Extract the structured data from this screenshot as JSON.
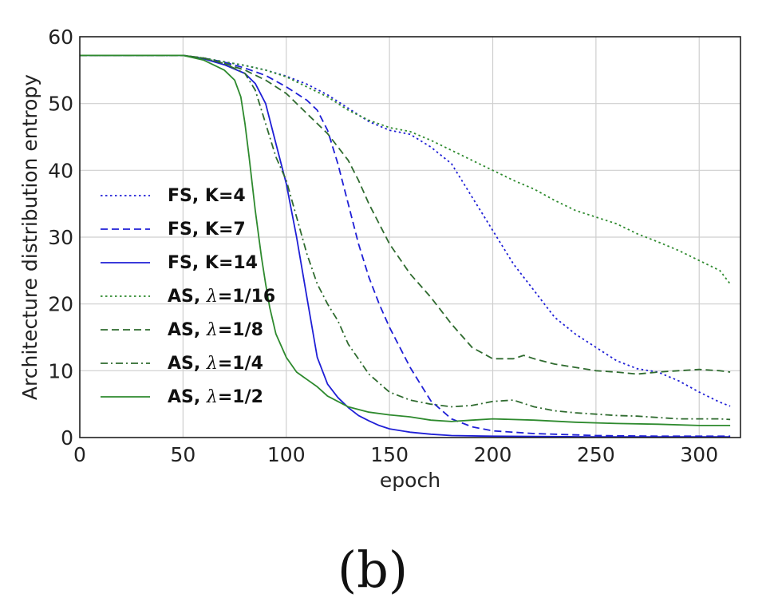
{
  "caption": "(b)",
  "chart_data": {
    "type": "line",
    "xlabel": "epoch",
    "ylabel": "Architecture distribution entropy",
    "xlim": [
      0,
      320
    ],
    "ylim": [
      0,
      60
    ],
    "xticks": [
      0,
      50,
      100,
      150,
      200,
      250,
      300
    ],
    "yticks": [
      0,
      10,
      20,
      30,
      40,
      50,
      60
    ],
    "grid": true,
    "legend_position": "left",
    "colors": {
      "blue": "#1f1fd6",
      "green": "#2e8a2e",
      "darkgreen": "#2f6b2f",
      "grid": "#cfcfcf",
      "axis": "#222222"
    },
    "series": [
      {
        "name_parts": [
          "FS, K=4"
        ],
        "color": "#1f1fd6",
        "style": "dotted",
        "x": [
          0,
          50,
          60,
          80,
          90,
          100,
          110,
          120,
          130,
          140,
          150,
          160,
          170,
          180,
          190,
          200,
          210,
          220,
          230,
          240,
          250,
          260,
          270,
          280,
          290,
          300,
          310,
          315
        ],
        "y": [
          57.2,
          57.2,
          56.8,
          55.7,
          55.0,
          54.1,
          52.9,
          51.3,
          49.3,
          47.3,
          46.0,
          45.4,
          43.5,
          41.0,
          36.0,
          31.0,
          26.0,
          22.0,
          18.0,
          15.5,
          13.5,
          11.5,
          10.3,
          9.8,
          8.5,
          6.8,
          5.3,
          4.7
        ]
      },
      {
        "name_parts": [
          "FS, K=7"
        ],
        "color": "#1f1fd6",
        "style": "dashed",
        "x": [
          0,
          50,
          60,
          70,
          80,
          90,
          100,
          110,
          115,
          120,
          125,
          130,
          135,
          140,
          145,
          150,
          155,
          160,
          165,
          170,
          180,
          190,
          200,
          220,
          250,
          280,
          315
        ],
        "y": [
          57.2,
          57.2,
          56.8,
          56.2,
          55.3,
          54.2,
          52.5,
          50.5,
          49.0,
          46.0,
          41.0,
          35.0,
          29.0,
          24.0,
          20.0,
          16.5,
          13.5,
          10.5,
          8.0,
          5.5,
          2.8,
          1.6,
          1.0,
          0.6,
          0.3,
          0.2,
          0.2
        ]
      },
      {
        "name_parts": [
          "FS, K=14"
        ],
        "color": "#1f1fd6",
        "style": "solid",
        "x": [
          0,
          50,
          60,
          70,
          80,
          85,
          90,
          95,
          100,
          105,
          110,
          115,
          120,
          125,
          130,
          135,
          140,
          145,
          150,
          160,
          170,
          180,
          200,
          250,
          315
        ],
        "y": [
          57.2,
          57.2,
          56.7,
          55.8,
          54.5,
          53.0,
          50.0,
          44.0,
          38.0,
          30.0,
          21.0,
          12.0,
          8.0,
          6.0,
          4.5,
          3.3,
          2.5,
          1.8,
          1.3,
          0.8,
          0.5,
          0.3,
          0.2,
          0.1,
          0.1
        ]
      },
      {
        "name_parts": [
          "AS, ",
          "λ",
          "=1/16"
        ],
        "color": "#2e8a2e",
        "style": "dotted",
        "x": [
          0,
          50,
          60,
          80,
          90,
          100,
          110,
          120,
          130,
          140,
          150,
          160,
          170,
          180,
          190,
          200,
          210,
          220,
          230,
          240,
          250,
          260,
          270,
          280,
          290,
          300,
          310,
          315
        ],
        "y": [
          57.2,
          57.2,
          56.8,
          55.7,
          55.0,
          54.0,
          52.5,
          51.0,
          49.0,
          47.5,
          46.4,
          45.8,
          44.5,
          43.0,
          41.5,
          40.0,
          38.5,
          37.2,
          35.5,
          34.0,
          33.0,
          32.0,
          30.5,
          29.3,
          28.0,
          26.5,
          25.0,
          23.0
        ]
      },
      {
        "name_parts": [
          "AS, ",
          "λ",
          "=1/8"
        ],
        "color": "#2f6b2f",
        "style": "dashed",
        "x": [
          0,
          50,
          60,
          70,
          80,
          90,
          100,
          110,
          120,
          130,
          135,
          140,
          145,
          150,
          160,
          170,
          180,
          190,
          200,
          210,
          215,
          220,
          230,
          240,
          250,
          260,
          270,
          280,
          290,
          300,
          310,
          315
        ],
        "y": [
          57.2,
          57.2,
          56.8,
          56.0,
          55.0,
          53.5,
          51.5,
          48.5,
          45.5,
          41.5,
          38.5,
          35.0,
          32.0,
          29.0,
          24.5,
          21.0,
          17.0,
          13.5,
          11.8,
          11.8,
          12.3,
          11.8,
          11.0,
          10.5,
          10.0,
          9.8,
          9.5,
          9.8,
          10.0,
          10.2,
          10.0,
          9.8
        ]
      },
      {
        "name_parts": [
          "AS, ",
          "λ",
          "=1/4"
        ],
        "color": "#2f6b2f",
        "style": "dashdot",
        "x": [
          0,
          50,
          60,
          70,
          80,
          85,
          90,
          95,
          100,
          105,
          110,
          115,
          120,
          125,
          130,
          140,
          150,
          160,
          170,
          180,
          190,
          200,
          210,
          220,
          230,
          240,
          250,
          260,
          270,
          280,
          290,
          300,
          310,
          315
        ],
        "y": [
          57.2,
          57.2,
          56.8,
          56.0,
          54.5,
          52.0,
          47.0,
          42.0,
          38.5,
          33.0,
          27.5,
          23.0,
          20.0,
          17.5,
          14.0,
          9.5,
          6.8,
          5.6,
          5.0,
          4.6,
          4.8,
          5.4,
          5.6,
          4.6,
          4.0,
          3.7,
          3.5,
          3.3,
          3.2,
          3.0,
          2.8,
          2.8,
          2.8,
          2.7
        ]
      },
      {
        "name_parts": [
          "AS, ",
          "λ",
          "=1/2"
        ],
        "color": "#2e8a2e",
        "style": "solid",
        "x": [
          0,
          50,
          60,
          70,
          75,
          78,
          80,
          82,
          85,
          88,
          90,
          92,
          95,
          100,
          105,
          110,
          115,
          120,
          130,
          140,
          150,
          160,
          170,
          180,
          190,
          200,
          220,
          240,
          260,
          280,
          300,
          315
        ],
        "y": [
          57.2,
          57.2,
          56.5,
          55.0,
          53.5,
          51.0,
          47.0,
          42.0,
          34.0,
          27.0,
          23.0,
          19.5,
          15.5,
          12.0,
          9.8,
          8.7,
          7.6,
          6.2,
          4.6,
          3.8,
          3.4,
          3.1,
          2.6,
          2.4,
          2.6,
          2.8,
          2.6,
          2.3,
          2.1,
          2.0,
          1.8,
          1.8
        ]
      }
    ]
  }
}
